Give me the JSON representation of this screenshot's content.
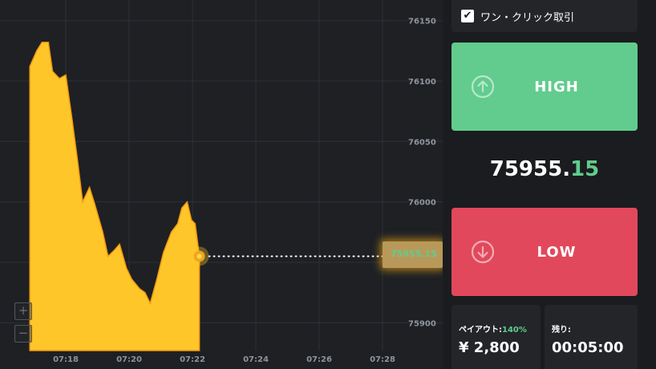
{
  "chart": {
    "y_ticks": [
      "76150",
      "76100",
      "76050",
      "76000",
      "75950",
      "75900"
    ],
    "x_ticks": [
      "07:18",
      "07:20",
      "07:22",
      "07:24",
      "07:26",
      "07:28"
    ],
    "series_color": "#ffc629",
    "current_price_label": "75955.15"
  },
  "chart_data": {
    "type": "area",
    "ylim": [
      75877,
      76167
    ],
    "yticks": [
      76150,
      76100,
      76050,
      76000,
      75950,
      75900
    ],
    "xticks": [
      "07:18",
      "07:20",
      "07:22",
      "07:24",
      "07:26",
      "07:28"
    ],
    "series": [
      {
        "color": "#ffc629",
        "points": [
          [
            "07:16:52",
            76112
          ],
          [
            "07:17:05",
            76125
          ],
          [
            "07:17:15",
            76132
          ],
          [
            "07:17:27",
            76132
          ],
          [
            "07:17:35",
            76108
          ],
          [
            "07:17:48",
            76102
          ],
          [
            "07:18:00",
            76105
          ],
          [
            "07:18:12",
            76068
          ],
          [
            "07:18:22",
            76035
          ],
          [
            "07:18:32",
            76000
          ],
          [
            "07:18:45",
            76012
          ],
          [
            "07:18:55",
            75998
          ],
          [
            "07:19:10",
            75975
          ],
          [
            "07:19:20",
            75955
          ],
          [
            "07:19:32",
            75960
          ],
          [
            "07:19:42",
            75965
          ],
          [
            "07:19:55",
            75945
          ],
          [
            "07:20:05",
            75936
          ],
          [
            "07:20:20",
            75928
          ],
          [
            "07:20:30",
            75925
          ],
          [
            "07:20:40",
            75916
          ],
          [
            "07:20:52",
            75935
          ],
          [
            "07:21:05",
            75958
          ],
          [
            "07:21:20",
            75975
          ],
          [
            "07:21:32",
            75982
          ],
          [
            "07:21:40",
            75995
          ],
          [
            "07:21:50",
            76000
          ],
          [
            "07:21:58",
            75985
          ],
          [
            "07:22:05",
            75982
          ],
          [
            "07:22:13",
            75955
          ]
        ]
      }
    ]
  },
  "zoom": {
    "in_label": "+",
    "out_label": "−"
  },
  "trade": {
    "one_click_label": "ワン・クリック取引",
    "one_click_checked": true,
    "high_label": "HIGH",
    "low_label": "LOW",
    "high_color": "#61cc8d",
    "low_color": "#e2485b",
    "current_price_int": "75955.",
    "current_price_dec": "15"
  },
  "info": {
    "payout_label": "ペイアウト:",
    "payout_pct": "140%",
    "payout_value": "¥ 2,800",
    "remaining_label": "残り:",
    "remaining_value": "00:05:00"
  }
}
